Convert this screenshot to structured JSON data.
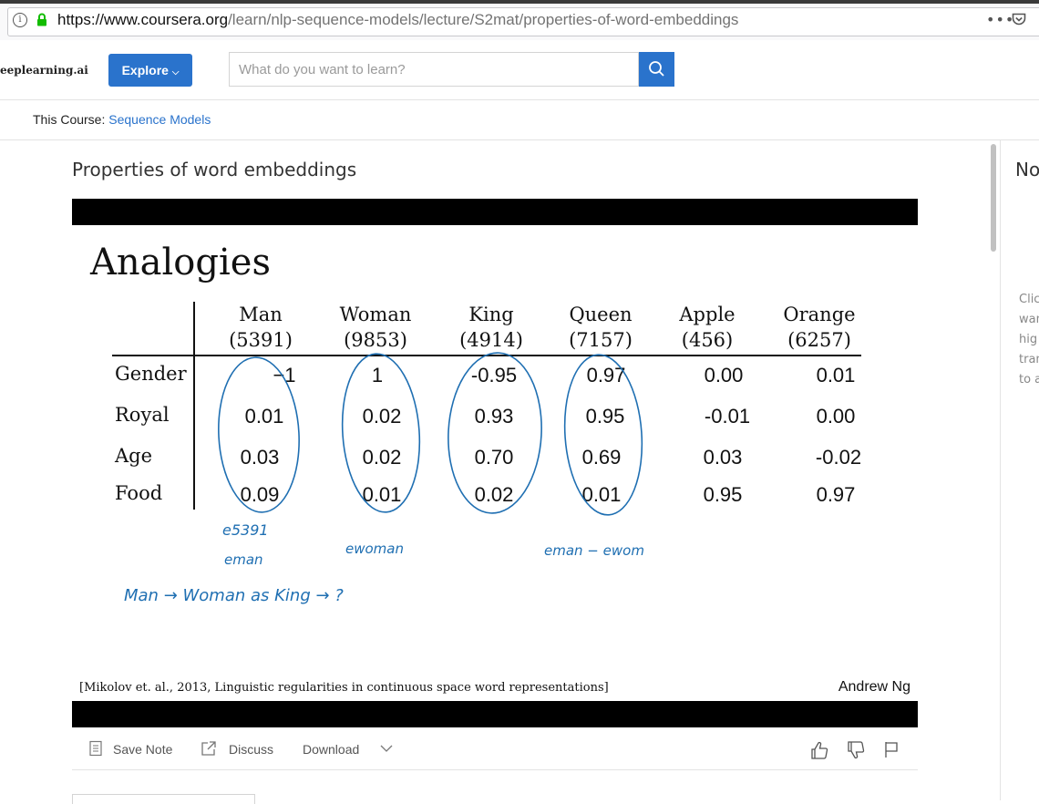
{
  "browser": {
    "url_domain": "https://www.coursera.org",
    "url_path": "/learn/nlp-sequence-models/lecture/S2mat/properties-of-word-embeddings",
    "more": "•••"
  },
  "header": {
    "brand": "eeplearning.ai",
    "explore_label": "Explore",
    "search_placeholder": "What do you want to learn?"
  },
  "course": {
    "prefix": "This Course: ",
    "name": "Sequence Models"
  },
  "lecture_title": "Properties of word embeddings",
  "slide": {
    "title": "Analogies",
    "columns": [
      {
        "word": "Man",
        "index": "(5391)"
      },
      {
        "word": "Woman",
        "index": "(9853)"
      },
      {
        "word": "King",
        "index": "(4914)"
      },
      {
        "word": "Queen",
        "index": "(7157)"
      },
      {
        "word": "Apple",
        "index": "(456)"
      },
      {
        "word": "Orange",
        "index": "(6257)"
      }
    ],
    "rows": [
      {
        "feature": "Gender",
        "values": [
          "−1",
          "1",
          "-0.95",
          "0.97",
          "0.00",
          "0.01"
        ]
      },
      {
        "feature": "Royal",
        "values": [
          "0.01",
          "0.02",
          "0.93",
          "0.95",
          "-0.01",
          "0.00"
        ]
      },
      {
        "feature": "Age",
        "values": [
          "0.03",
          "0.02",
          "0.70",
          "0.69",
          "0.03",
          "-0.02"
        ]
      },
      {
        "feature": "Food",
        "values": [
          "0.09",
          "0.01",
          "0.02",
          "0.01",
          "0.95",
          "0.97"
        ]
      }
    ],
    "handwriting": {
      "e5391": "e5391",
      "eman": "eman",
      "ewoman": "ewoman",
      "diff": "eman − ewom",
      "analogy": "Man → Woman  as  King → ?"
    },
    "citation": "[Mikolov et. al., 2013, Linguistic regularities in continuous space word representations]",
    "author": "Andrew Ng"
  },
  "toolbar": {
    "save_note": "Save Note",
    "discuss": "Discuss",
    "download": "Download"
  },
  "right_panel": {
    "title": "No",
    "lines": [
      "Clic",
      "wan",
      "hig",
      "tran",
      "to a"
    ]
  },
  "colors": {
    "accent": "#2a73cc",
    "ink": "#1f6fb2"
  }
}
